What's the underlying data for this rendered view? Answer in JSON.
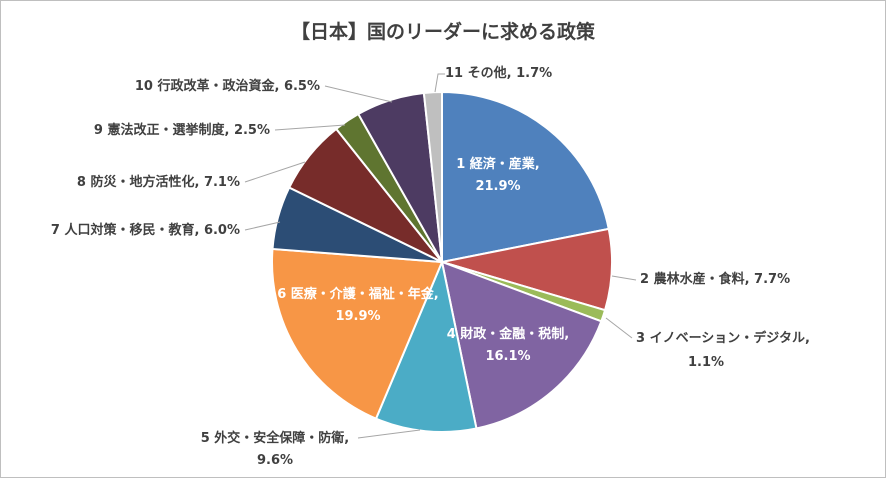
{
  "chart_data": {
    "type": "pie",
    "title": "【日本】国のリーダーに求める政策",
    "slices": [
      {
        "label": "1 経済・産業",
        "value": 21.9,
        "value_label": "21.9%",
        "color": "#4f81bd"
      },
      {
        "label": "2 農林水産・食料",
        "value": 7.7,
        "value_label": "7.7%",
        "color": "#c0504d"
      },
      {
        "label": "3 イノベーション・デジタル",
        "value": 1.1,
        "value_label": "1.1%",
        "color": "#9bbb59"
      },
      {
        "label": "4 財政・金融・税制",
        "value": 16.1,
        "value_label": "16.1%",
        "color": "#8064a2"
      },
      {
        "label": "5 外交・安全保障・防衛",
        "value": 9.6,
        "value_label": "9.6%",
        "color": "#4bacc6"
      },
      {
        "label": "6 医療・介護・福祉・年金",
        "value": 19.9,
        "value_label": "19.9%",
        "color": "#f79646"
      },
      {
        "label": "7 人口対策・移民・教育",
        "value": 6.0,
        "value_label": "6.0%",
        "color": "#2c4d75"
      },
      {
        "label": "8 防災・地方活性化",
        "value": 7.1,
        "value_label": "7.1%",
        "color": "#772c2a"
      },
      {
        "label": "9 憲法改正・選挙制度",
        "value": 2.5,
        "value_label": "2.5%",
        "color": "#5f7530"
      },
      {
        "label": "10 行政改革・政治資金",
        "value": 6.5,
        "value_label": "6.5%",
        "color": "#4d3b62"
      },
      {
        "label": "11 その他",
        "value": 1.7,
        "value_label": "1.7%",
        "color": "#bfbfbf"
      }
    ]
  }
}
